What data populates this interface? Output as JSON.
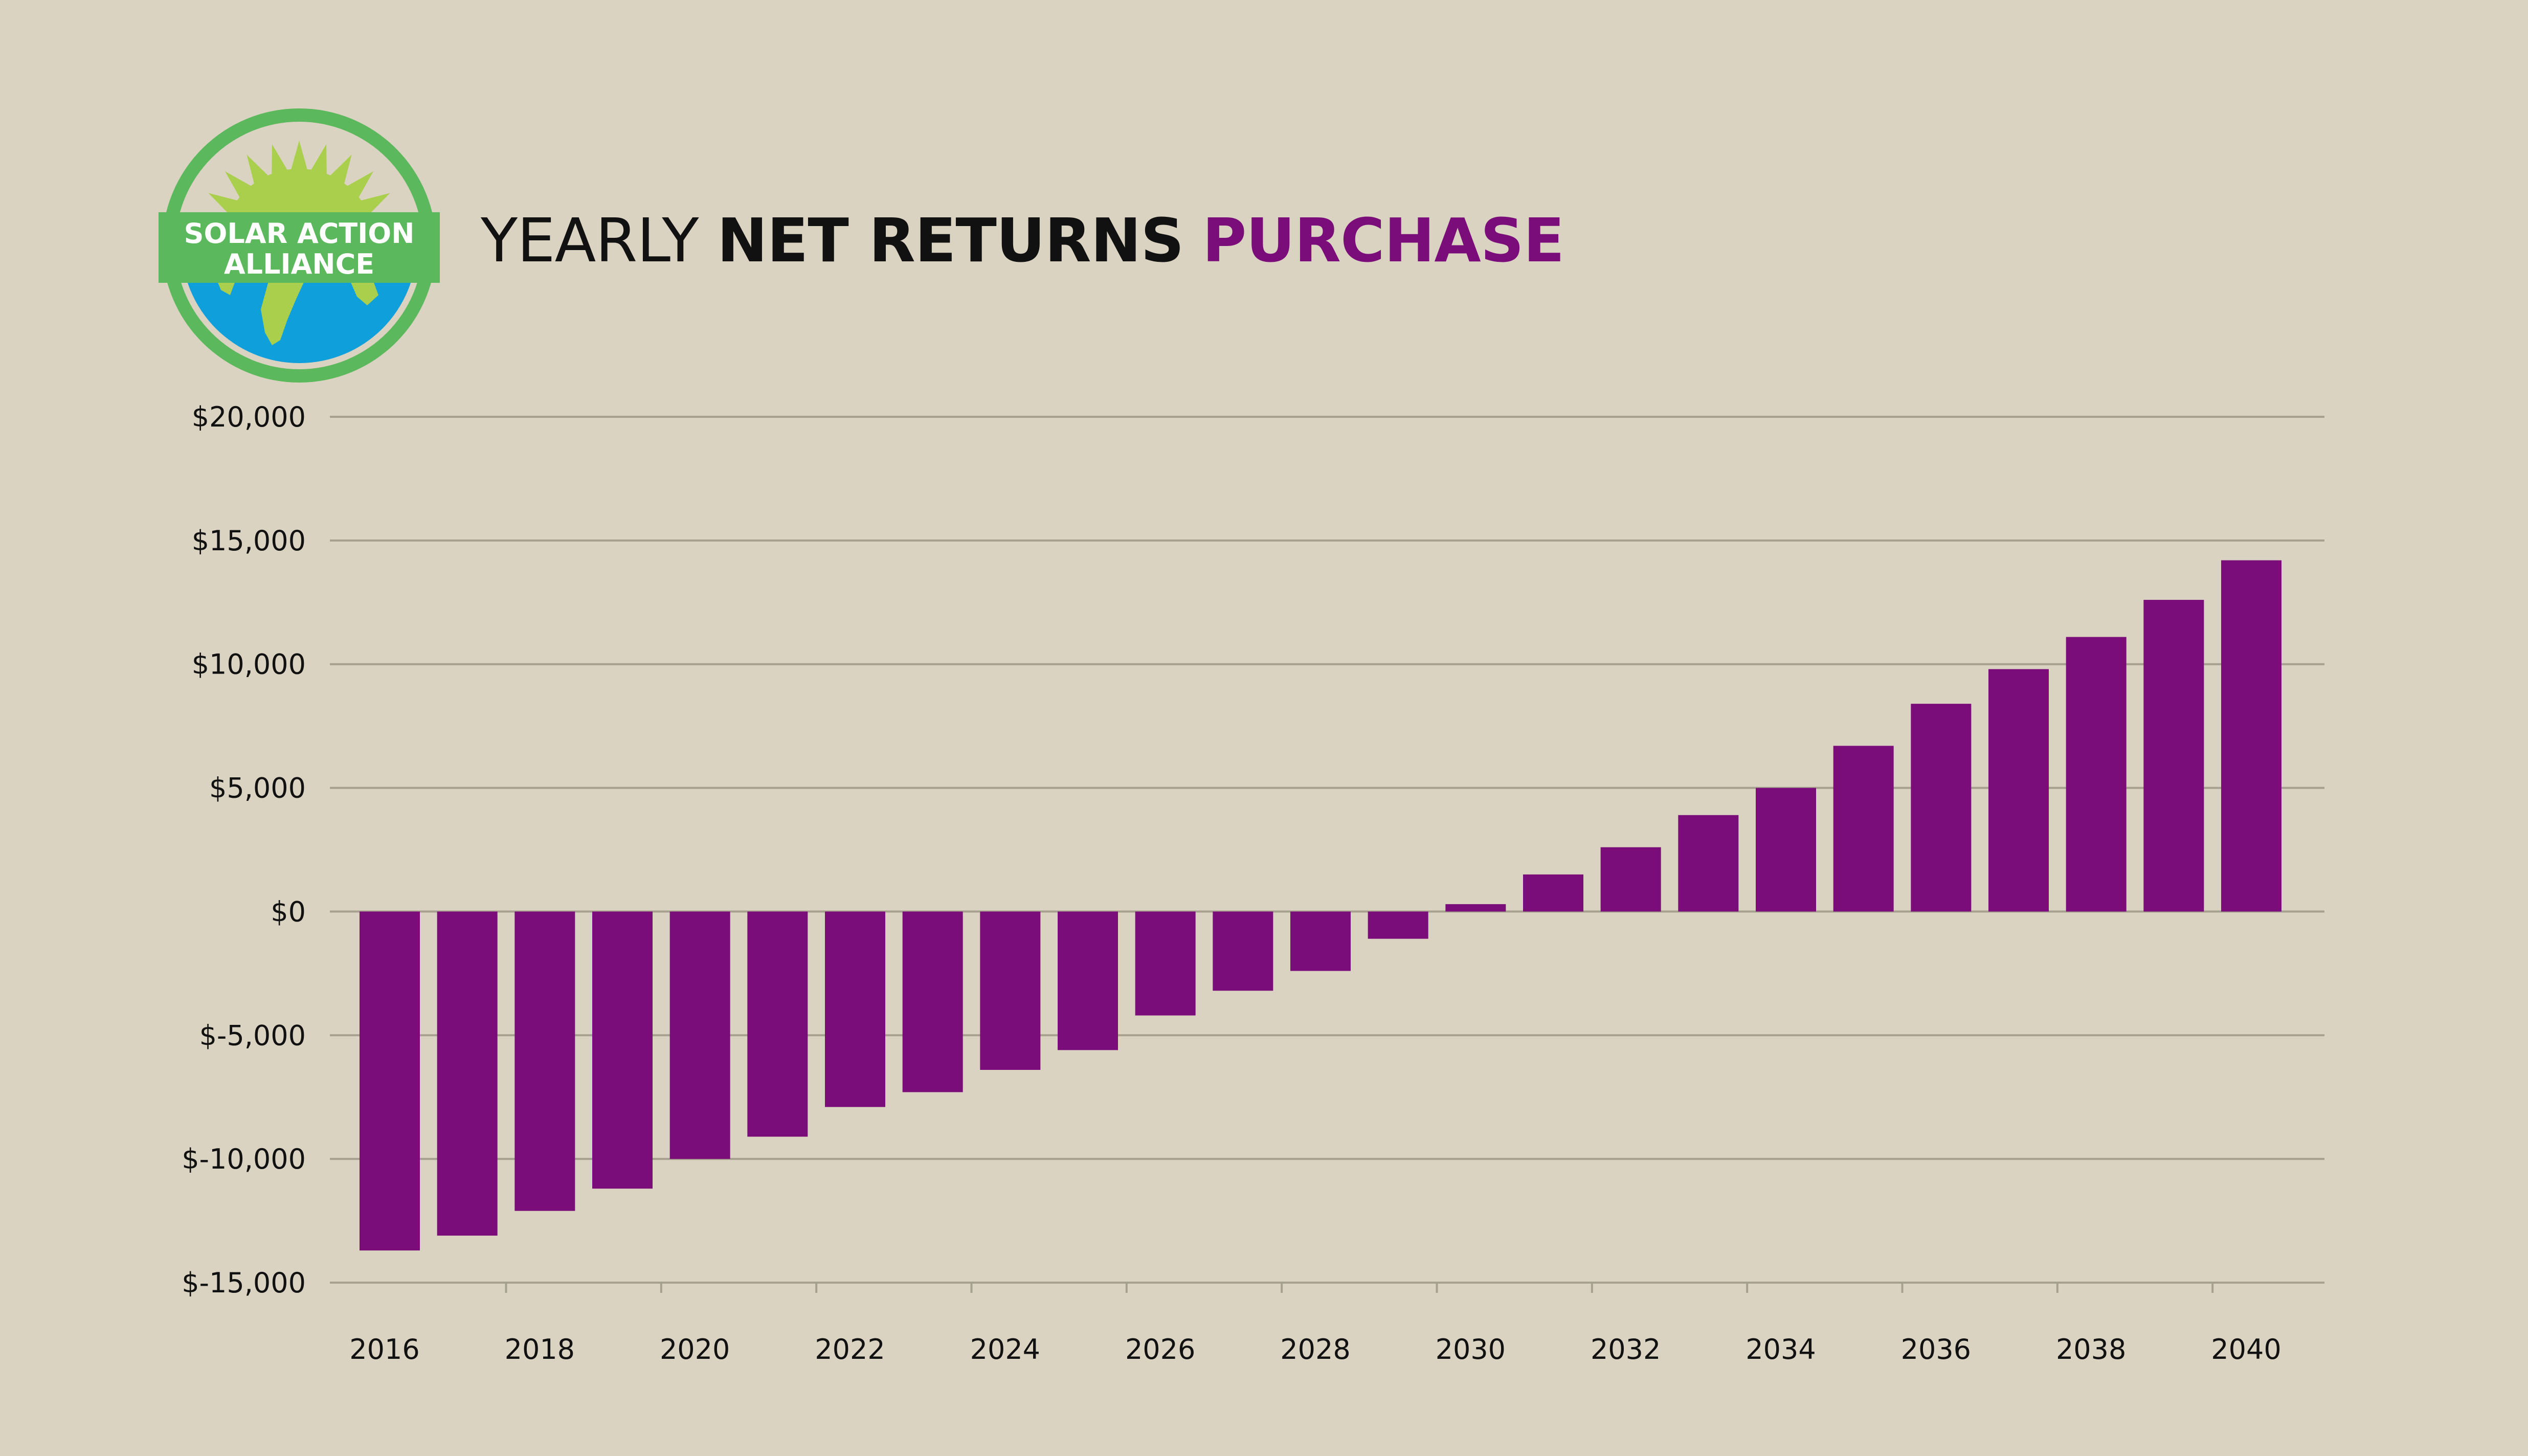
{
  "logo": {
    "line1": "SOLAR ACTION",
    "line2": "ALLIANCE"
  },
  "title": {
    "part1": "YEARLY",
    "part2": "NET RETURNS",
    "part3": "PURCHASE"
  },
  "colors": {
    "background": "#dad3c1",
    "bar": "#7b0d7b",
    "accent": "#7b0d7b",
    "gridline": "#a6a08e",
    "text": "#111111",
    "logo_green": "#5cb85c",
    "logo_lime": "#a9cf4c",
    "logo_blue": "#0fa0dc"
  },
  "chart_data": {
    "type": "bar",
    "title": "YEARLY NET RETURNS PURCHASE",
    "xlabel": "",
    "ylabel": "",
    "categories": [
      "2016",
      "2017",
      "2018",
      "2019",
      "2020",
      "2021",
      "2022",
      "2023",
      "2024",
      "2025",
      "2026",
      "2027",
      "2028",
      "2029",
      "2030",
      "2031",
      "2032",
      "2033",
      "2034",
      "2035",
      "2036",
      "2037",
      "2038",
      "2039",
      "2040"
    ],
    "x_tick_labels": [
      "2016",
      "2018",
      "2020",
      "2022",
      "2024",
      "2026",
      "2028",
      "2030",
      "2032",
      "2034",
      "2036",
      "2038",
      "2040"
    ],
    "values": [
      -13700,
      -13100,
      -12100,
      -11200,
      -10000,
      -9100,
      -7900,
      -7300,
      -6400,
      -5600,
      -4200,
      -3200,
      -2400,
      -1100,
      300,
      1500,
      2600,
      3900,
      5000,
      6700,
      8400,
      9800,
      11100,
      12600,
      14200
    ],
    "ylim": [
      -15000,
      20000
    ],
    "y_ticks": [
      20000,
      15000,
      10000,
      5000,
      0,
      -5000,
      -10000,
      -15000
    ],
    "y_tick_labels": [
      "$20,000",
      "$15,000",
      "$10,000",
      "$5,000",
      "$0",
      "$-5,000",
      "$-10,000",
      "$-15,000"
    ],
    "grid": true,
    "legend": "none"
  }
}
